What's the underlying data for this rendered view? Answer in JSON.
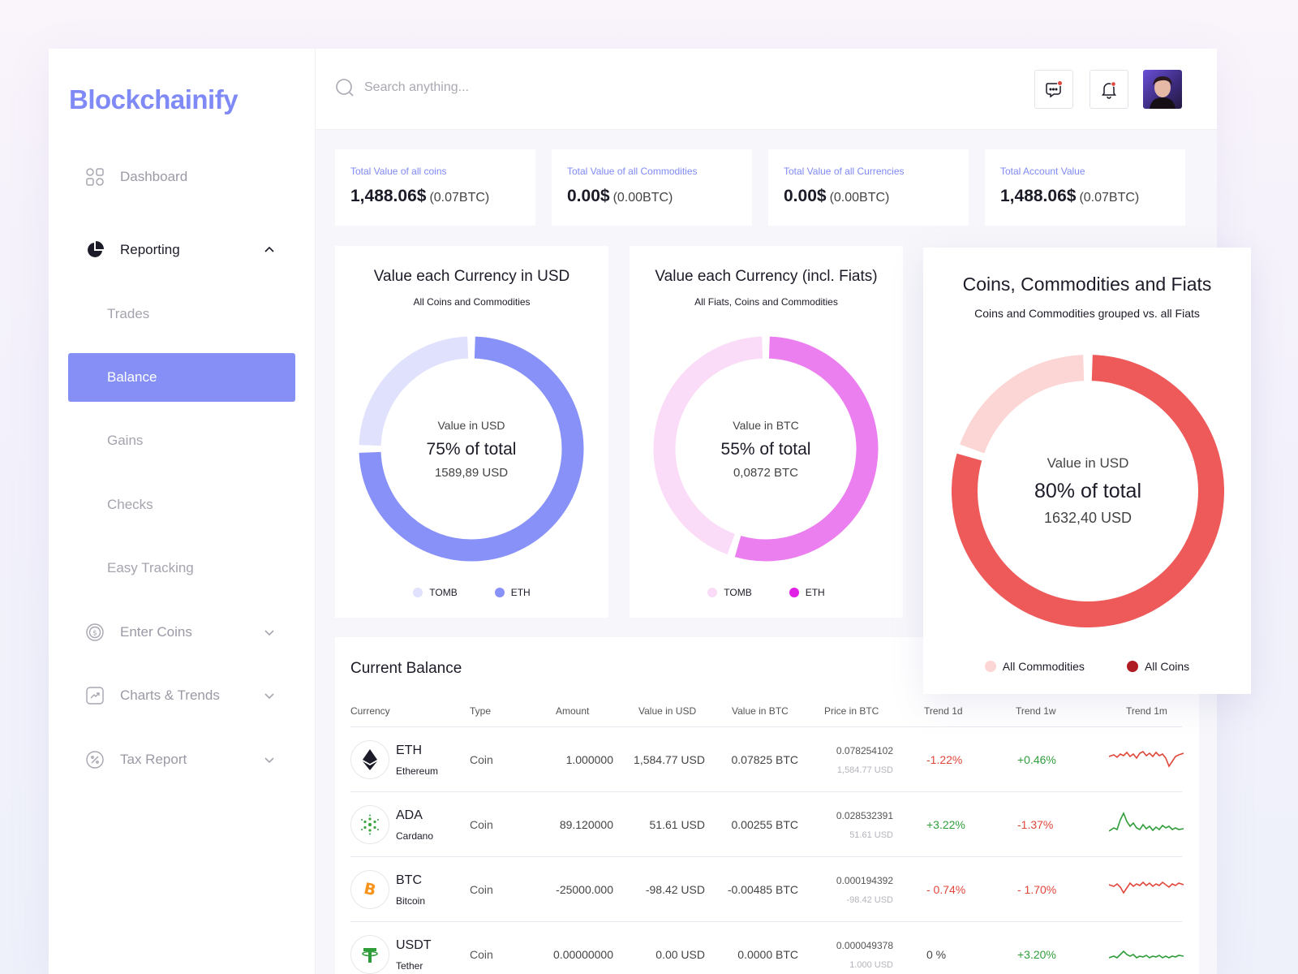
{
  "app": {
    "logo": "Blockchainify"
  },
  "sidebar": {
    "dashboard": "Dashboard",
    "reporting": "Reporting",
    "sub_items": [
      "Trades",
      "Balance",
      "Gains",
      "Checks",
      "Easy Tracking"
    ],
    "selected": "Balance",
    "enter_coins": "Enter Coins",
    "charts_trends": "Charts & Trends",
    "tax_report": "Tax Report"
  },
  "header": {
    "search_placeholder": "Search anything..."
  },
  "stats": [
    {
      "label": "Total Value of all coins",
      "value": "1,488.06$",
      "sub": "(0.07BTC)"
    },
    {
      "label": "Total Value of all Commodities",
      "value": "0.00$",
      "sub": "(0.00BTC)"
    },
    {
      "label": "Total Value of all Currencies",
      "value": "0.00$",
      "sub": "(0.00BTC)"
    },
    {
      "label": "Total Account Value",
      "value": "1,488.06$",
      "sub": "(0.07BTC)"
    }
  ],
  "charts": [
    {
      "title": "Value each Currency in USD",
      "subtitle": "All Coins and Commodities",
      "center_label": "Value in USD",
      "center_pct": "75% of total",
      "center_value": "1589,89 USD",
      "legend": [
        "TOMB",
        "ETH"
      ],
      "colors": [
        "#e0e1fc",
        "#8891f7"
      ],
      "chart_data": {
        "type": "pie",
        "categories": [
          "TOMB",
          "ETH"
        ],
        "values": [
          25,
          75
        ]
      }
    },
    {
      "title": "Value each Currency (incl. Fiats)",
      "subtitle": "All Fiats, Coins and Commodities",
      "center_label": "Value in BTC",
      "center_pct": "55% of total",
      "center_value": "0,0872 BTC",
      "legend": [
        "TOMB",
        "ETH"
      ],
      "colors": [
        "#fbdcf8",
        "#ec7ff0"
      ],
      "legend_colors": [
        "#fbdcf8",
        "#e020e5"
      ],
      "chart_data": {
        "type": "pie",
        "categories": [
          "TOMB",
          "ETH"
        ],
        "values": [
          45,
          55
        ]
      }
    },
    {
      "title": "Coins, Commodities and Fiats",
      "subtitle": "Coins and Commodities grouped vs. all Fiats",
      "center_label": "Value in USD",
      "center_pct": "80% of total",
      "center_value": "1632,40 USD",
      "legend": [
        "All Commodities",
        "All Coins"
      ],
      "colors": [
        "#fcd5d5",
        "#ee5a5a"
      ],
      "legend_colors": [
        "#fcd5d5",
        "#b01c24"
      ],
      "chart_data": {
        "type": "pie",
        "categories": [
          "All Commodities",
          "All Coins"
        ],
        "values": [
          20,
          80
        ]
      }
    }
  ],
  "table": {
    "title": "Current Balance",
    "columns": [
      "Currency",
      "Type",
      "Amount",
      "Value in USD",
      "Value in BTC",
      "Price in BTC",
      "Trend 1d",
      "Trend 1w",
      "Trend 1m"
    ],
    "rows": [
      {
        "symbol": "ETH",
        "name": "Ethereum",
        "type": "Coin",
        "amount": "1.000000",
        "usd": "1,584.77 USD",
        "btc": "0.07825 BTC",
        "price_btc": "0.078254102",
        "price_usd": "1,584.77 USD",
        "d1": "-1.22%",
        "w1": "+0.46%",
        "trend_color": "#e0463a",
        "icon": "ethereum-icon"
      },
      {
        "symbol": "ADA",
        "name": "Cardano",
        "type": "Coin",
        "amount": "89.120000",
        "usd": "51.61 USD",
        "btc": "0.00255 BTC",
        "price_btc": "0.028532391",
        "price_usd": "51.61 USD",
        "d1": "+3.22%",
        "w1": "-1.37%",
        "trend_color": "#2f9d3a",
        "icon": "cardano-icon"
      },
      {
        "symbol": "BTC",
        "name": "Bitcoin",
        "type": "Coin",
        "amount": "-25000.000",
        "usd": "-98.42 USD",
        "btc": "-0.00485 BTC",
        "price_btc": "0.000194392",
        "price_usd": "-98.42 USD",
        "d1": "- 0.74%",
        "w1": "- 1.70%",
        "trend_color": "#e0463a",
        "icon": "bitcoin-icon"
      },
      {
        "symbol": "USDT",
        "name": "Tether",
        "type": "Coin",
        "amount": "0.00000000",
        "usd": "0.00 USD",
        "btc": "0.0000 BTC",
        "price_btc": "0.000049378",
        "price_usd": "1.000 USD",
        "d1": "0 %",
        "w1": "+3.20%",
        "trend_color": "#2f9d3a",
        "icon": "tether-icon"
      }
    ]
  }
}
